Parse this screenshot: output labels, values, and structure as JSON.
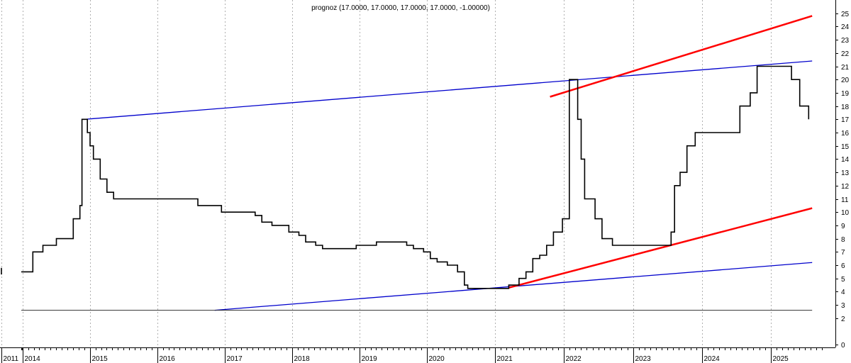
{
  "chart_data": {
    "type": "line",
    "title": "prognoz (17.0000, 17.0000, 17.0000, 17.0000, -1.00000)",
    "xlabel": "",
    "ylabel": "",
    "x_tick_labels": [
      "2011",
      "2014",
      "2015",
      "2016",
      "2017",
      "2018",
      "2019",
      "2020",
      "2021",
      "2022",
      "2023",
      "2024",
      "2025"
    ],
    "y_tick_labels": [
      "0",
      "2",
      "3",
      "4",
      "5",
      "6",
      "7",
      "8",
      "9",
      "10",
      "11",
      "12",
      "13",
      "14",
      "15",
      "16",
      "17",
      "18",
      "19",
      "20",
      "21",
      "22",
      "23",
      "24",
      "25"
    ],
    "ylim": [
      -0.2,
      26
    ],
    "grid": "vertical dotted at year boundaries",
    "legend": "none",
    "colors": {
      "price": "#000000",
      "channel": "#0000cc",
      "trend": "#ff0000",
      "baseline": "#333333"
    },
    "series": [
      {
        "style": "step",
        "values": [
          [
            "2013.8",
            5.5
          ],
          [
            "2014.15",
            5.5
          ],
          [
            "2014.15",
            7.0
          ],
          [
            "2014.3",
            7.0
          ],
          [
            "2014.3",
            7.5
          ],
          [
            "2014.5",
            7.5
          ],
          [
            "2014.5",
            8.0
          ],
          [
            "2014.75",
            8.0
          ],
          [
            "2014.75",
            9.5
          ],
          [
            "2014.85",
            9.5
          ],
          [
            "2014.85",
            10.5
          ],
          [
            "2014.88",
            10.5
          ],
          [
            "2014.88",
            17.0
          ],
          [
            "2014.96",
            17.0
          ],
          [
            "2014.96",
            16.0
          ],
          [
            "2015.0",
            16.0
          ],
          [
            "2015.0",
            15.0
          ],
          [
            "2015.05",
            15.0
          ],
          [
            "2015.05",
            14.0
          ],
          [
            "2015.15",
            14.0
          ],
          [
            "2015.15",
            12.5
          ],
          [
            "2015.25",
            12.5
          ],
          [
            "2015.25",
            11.5
          ],
          [
            "2015.35",
            11.5
          ],
          [
            "2015.35",
            11.0
          ],
          [
            "2016.6",
            11.0
          ],
          [
            "2016.6",
            10.5
          ],
          [
            "2016.95",
            10.5
          ],
          [
            "2016.95",
            10.0
          ],
          [
            "2017.45",
            10.0
          ],
          [
            "2017.45",
            9.75
          ],
          [
            "2017.55",
            9.75
          ],
          [
            "2017.55",
            9.25
          ],
          [
            "2017.7",
            9.25
          ],
          [
            "2017.7",
            9.0
          ],
          [
            "2017.95",
            9.0
          ],
          [
            "2017.95",
            8.5
          ],
          [
            "2018.1",
            8.5
          ],
          [
            "2018.1",
            8.25
          ],
          [
            "2018.2",
            8.25
          ],
          [
            "2018.2",
            7.75
          ],
          [
            "2018.35",
            7.75
          ],
          [
            "2018.35",
            7.5
          ],
          [
            "2018.45",
            7.5
          ],
          [
            "2018.45",
            7.25
          ],
          [
            "2018.95",
            7.25
          ],
          [
            "2018.95",
            7.5
          ],
          [
            "2019.25",
            7.5
          ],
          [
            "2019.25",
            7.75
          ],
          [
            "2019.7",
            7.75
          ],
          [
            "2019.7",
            7.5
          ],
          [
            "2019.8",
            7.5
          ],
          [
            "2019.8",
            7.25
          ],
          [
            "2019.95",
            7.25
          ],
          [
            "2019.95",
            7.0
          ],
          [
            "2020.05",
            7.0
          ],
          [
            "2020.05",
            6.5
          ],
          [
            "2020.15",
            6.5
          ],
          [
            "2020.15",
            6.25
          ],
          [
            "2020.3",
            6.25
          ],
          [
            "2020.3",
            6.0
          ],
          [
            "2020.45",
            6.0
          ],
          [
            "2020.45",
            5.5
          ],
          [
            "2020.55",
            5.5
          ],
          [
            "2020.55",
            4.5
          ],
          [
            "2020.6",
            4.5
          ],
          [
            "2020.6",
            4.25
          ],
          [
            "2021.2",
            4.25
          ],
          [
            "2021.2",
            4.5
          ],
          [
            "2021.35",
            4.5
          ],
          [
            "2021.35",
            5.0
          ],
          [
            "2021.45",
            5.0
          ],
          [
            "2021.45",
            5.5
          ],
          [
            "2021.55",
            5.5
          ],
          [
            "2021.55",
            6.5
          ],
          [
            "2021.65",
            6.5
          ],
          [
            "2021.65",
            6.75
          ],
          [
            "2021.75",
            6.75
          ],
          [
            "2021.75",
            7.5
          ],
          [
            "2021.85",
            7.5
          ],
          [
            "2021.85",
            8.5
          ],
          [
            "2021.98",
            8.5
          ],
          [
            "2021.98",
            9.5
          ],
          [
            "2022.08",
            9.5
          ],
          [
            "2022.08",
            20.0
          ],
          [
            "2022.2",
            20.0
          ],
          [
            "2022.2",
            17.0
          ],
          [
            "2022.25",
            17.0
          ],
          [
            "2022.25",
            14.0
          ],
          [
            "2022.3",
            14.0
          ],
          [
            "2022.3",
            11.0
          ],
          [
            "2022.45",
            11.0
          ],
          [
            "2022.45",
            9.5
          ],
          [
            "2022.55",
            9.5
          ],
          [
            "2022.55",
            8.0
          ],
          [
            "2022.7",
            8.0
          ],
          [
            "2022.7",
            7.5
          ],
          [
            "2023.55",
            7.5
          ],
          [
            "2023.55",
            8.5
          ],
          [
            "2023.6",
            8.5
          ],
          [
            "2023.6",
            12.0
          ],
          [
            "2023.68",
            12.0
          ],
          [
            "2023.68",
            13.0
          ],
          [
            "2023.78",
            13.0
          ],
          [
            "2023.78",
            15.0
          ],
          [
            "2023.9",
            15.0
          ],
          [
            "2023.9",
            16.0
          ],
          [
            "2024.55",
            16.0
          ],
          [
            "2024.55",
            18.0
          ],
          [
            "2024.7",
            18.0
          ],
          [
            "2024.7",
            19.0
          ],
          [
            "2024.8",
            19.0
          ],
          [
            "2024.8",
            21.0
          ],
          [
            "2025.3",
            21.0
          ],
          [
            "2025.3",
            20.0
          ],
          [
            "2025.42",
            20.0
          ],
          [
            "2025.42",
            18.0
          ],
          [
            "2025.55",
            18.0
          ],
          [
            "2025.55",
            17.0
          ]
        ]
      },
      {
        "style": "line",
        "values": [
          [
            "2014.92",
            17.0
          ],
          [
            "2025.6",
            21.4
          ]
        ]
      },
      {
        "style": "line",
        "values": [
          [
            "2016.85",
            2.6
          ],
          [
            "2025.6",
            6.2
          ]
        ]
      },
      {
        "style": "line",
        "values": [
          [
            "2021.2",
            4.3
          ],
          [
            "2025.6",
            10.3
          ]
        ]
      },
      {
        "style": "line",
        "values": [
          [
            "2021.8",
            18.7
          ],
          [
            "2025.6",
            24.8
          ]
        ]
      },
      {
        "style": "line",
        "values": [
          [
            "2013.8",
            2.6
          ],
          [
            "2025.6",
            2.6
          ]
        ]
      }
    ]
  }
}
